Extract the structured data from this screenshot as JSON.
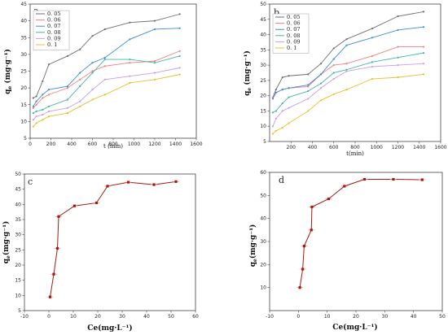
{
  "chart_data": [
    {
      "panel": "a",
      "type": "line",
      "xlabel": "t (min)",
      "ylabel": "qe (mg·g⁻¹)",
      "ylabel_main": "q",
      "ylabel_sub": "e",
      "ylabel_unit": " (mg·g⁻¹)",
      "xlim": [
        0,
        1600
      ],
      "ylim": [
        5,
        45
      ],
      "xticks": [
        0,
        200,
        400,
        600,
        800,
        1000,
        1200,
        1400,
        1600
      ],
      "yticks": [
        5,
        10,
        15,
        20,
        25,
        30,
        35,
        40,
        45
      ],
      "legend": "top-left",
      "x": [
        30,
        60,
        120,
        180,
        360,
        480,
        600,
        720,
        960,
        1200,
        1440
      ],
      "series": [
        {
          "name": "0. 05",
          "color": "#6e6e6e",
          "values": [
            17.0,
            17.5,
            22.0,
            27.0,
            29.5,
            31.5,
            35.5,
            37.5,
            39.5,
            40.0,
            42.0
          ]
        },
        {
          "name": "0. 06",
          "color": "#f08080",
          "values": [
            14.0,
            15.0,
            17.0,
            18.0,
            20.0,
            22.5,
            25.0,
            26.5,
            27.5,
            28.0,
            31.0
          ]
        },
        {
          "name": "0. 07",
          "color": "#3f8fd2",
          "values": [
            14.5,
            16.0,
            18.0,
            19.5,
            20.5,
            24.5,
            27.5,
            29.0,
            34.5,
            37.5,
            37.8
          ]
        },
        {
          "name": "0. 08",
          "color": "#4ab5a0",
          "values": [
            12.5,
            13.0,
            13.5,
            14.5,
            16.5,
            20.5,
            24.5,
            28.5,
            28.5,
            27.5,
            29.5
          ]
        },
        {
          "name": "0. 09",
          "color": "#c4a0e6",
          "values": [
            10.5,
            11.5,
            12.0,
            13.0,
            14.0,
            16.0,
            19.5,
            22.5,
            23.5,
            24.5,
            26.0
          ]
        },
        {
          "name": "0. 1",
          "color": "#e8c030",
          "values": [
            8.5,
            9.5,
            10.5,
            11.5,
            12.5,
            14.5,
            16.5,
            18.0,
            21.5,
            22.5,
            24.0
          ]
        }
      ]
    },
    {
      "panel": "b",
      "type": "line",
      "xlabel": "t(min)",
      "ylabel": "qe (mg·g⁻¹)",
      "ylabel_main": "q",
      "ylabel_sub": "e",
      "ylabel_unit": " (mg·g⁻¹)",
      "xlim": [
        0,
        1600
      ],
      "ylim": [
        5,
        50
      ],
      "xticks": [
        200,
        400,
        600,
        800,
        1000,
        1200,
        1400,
        1600
      ],
      "yticks": [
        5,
        10,
        15,
        20,
        25,
        30,
        35,
        40,
        45,
        50
      ],
      "legend": "top-left",
      "x": [
        30,
        60,
        120,
        180,
        360,
        480,
        600,
        720,
        960,
        1200,
        1440
      ],
      "series": [
        {
          "name": "0. 05",
          "color": "#6e6e6e",
          "values": [
            19.5,
            22.0,
            26.0,
            26.5,
            27.0,
            30.5,
            35.5,
            38.5,
            42.0,
            46.0,
            47.5
          ]
        },
        {
          "name": "0. 06",
          "color": "#f08080",
          "values": [
            19.5,
            21.0,
            22.0,
            22.5,
            23.0,
            27.0,
            30.0,
            30.5,
            33.0,
            36.0,
            36.0
          ]
        },
        {
          "name": "0. 07",
          "color": "#3f8fd2",
          "values": [
            19.0,
            21.0,
            22.0,
            22.5,
            23.5,
            27.0,
            32.0,
            36.5,
            39.0,
            41.5,
            42.5
          ]
        },
        {
          "name": "0. 08",
          "color": "#4ab5a0",
          "values": [
            14.5,
            15.0,
            17.5,
            19.5,
            21.5,
            24.0,
            27.5,
            28.5,
            31.0,
            32.5,
            34.0
          ]
        },
        {
          "name": "0. 09",
          "color": "#c4a0e6",
          "values": [
            10.0,
            12.5,
            15.0,
            16.0,
            19.0,
            22.5,
            25.5,
            28.0,
            29.5,
            30.0,
            30.5
          ]
        },
        {
          "name": "0. 1",
          "color": "#e8c030",
          "values": [
            7.5,
            8.5,
            9.5,
            11.0,
            15.0,
            18.5,
            20.5,
            22.0,
            25.5,
            26.0,
            27.0
          ]
        }
      ]
    },
    {
      "panel": "c",
      "type": "scatter",
      "xlabel": "Ce(mg·L⁻¹)",
      "ylabel": "qe(mg·g⁻¹)",
      "ylabel_main": "q",
      "ylabel_sub": "e",
      "ylabel_unit": "(mg·g⁻¹)",
      "xlim": [
        -10,
        60
      ],
      "ylim": [
        5,
        50
      ],
      "xticks": [
        -10,
        0,
        10,
        20,
        30,
        40,
        50,
        60
      ],
      "yticks": [
        5,
        10,
        15,
        20,
        25,
        30,
        35,
        40,
        45,
        50
      ],
      "color": "#a01c10",
      "x": [
        0.5,
        2.0,
        3.5,
        4.0,
        10.5,
        19.5,
        24.0,
        32.5,
        43.0,
        52.0
      ],
      "y": [
        9.5,
        17.0,
        25.5,
        36.0,
        39.5,
        40.5,
        46.0,
        47.3,
        46.5,
        47.5
      ]
    },
    {
      "panel": "d",
      "type": "scatter",
      "xlabel": "Ce(mg·L⁻¹)",
      "ylabel": "qe(mg·g⁻¹)",
      "ylabel_main": "q",
      "ylabel_sub": "e",
      "ylabel_unit": "(mg·g⁻¹)",
      "xlim": [
        -10,
        50
      ],
      "ylim": [
        0,
        60
      ],
      "xticks": [
        -10,
        0,
        10,
        20,
        30,
        40,
        50
      ],
      "yticks": [
        10,
        20,
        30,
        40,
        50,
        60
      ],
      "color": "#a01c10",
      "x": [
        0.5,
        1.5,
        2.0,
        4.5,
        4.7,
        10.5,
        16.0,
        23.0,
        33.0,
        43.0
      ],
      "y": [
        10.0,
        18.0,
        28.0,
        35.0,
        45.0,
        48.5,
        54.0,
        57.0,
        57.0,
        56.8
      ]
    }
  ]
}
